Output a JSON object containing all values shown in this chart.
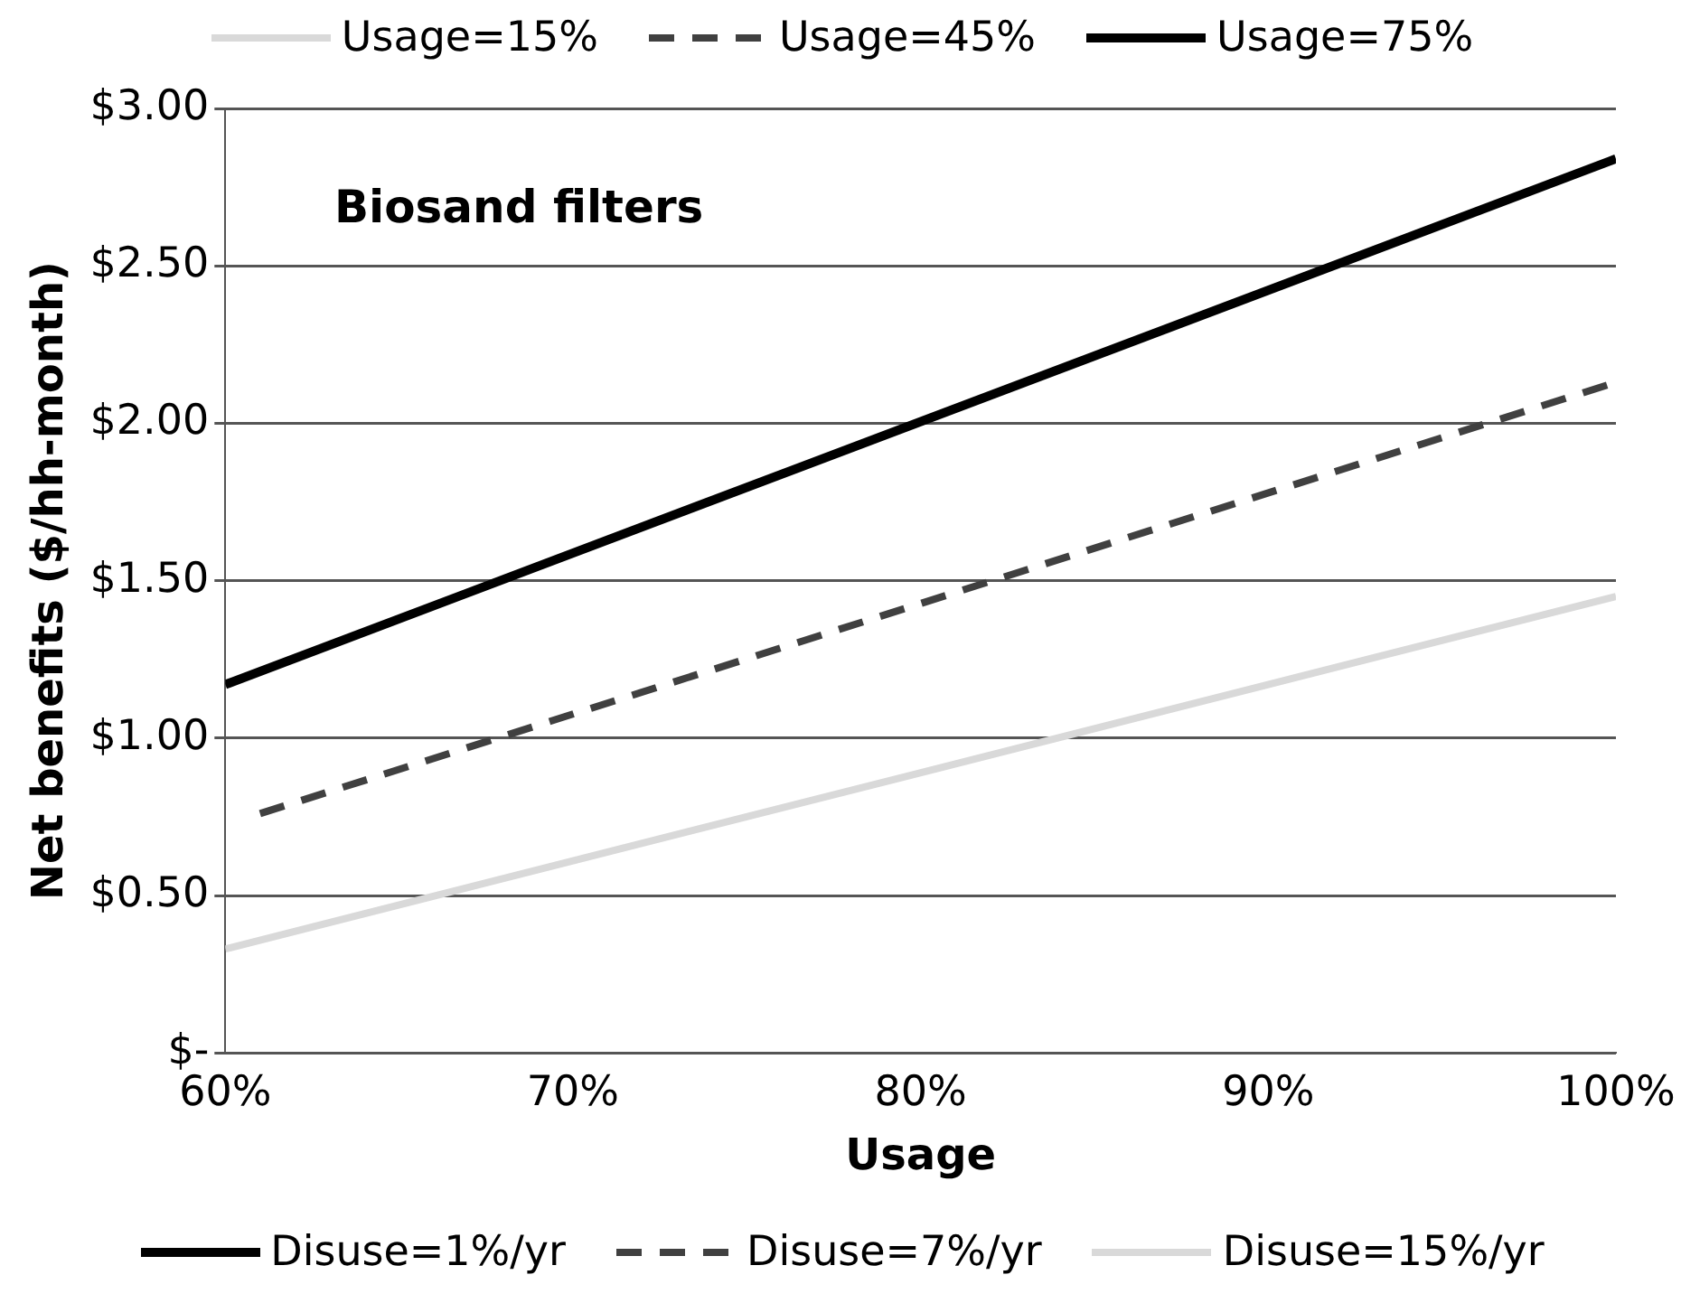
{
  "chart_data": {
    "type": "line",
    "xlabel": "Usage",
    "ylabel": "Net benefits ($/hh-month)",
    "annotations": [
      "Biosand filters",
      "Disuse=1%/yr",
      "Disuse=7%/yr",
      "Disuse=15%/yr"
    ],
    "series": [
      {
        "name": "Usage=15%",
        "color": "#d9d9d9",
        "line_style": "solid",
        "x": [
          60,
          100
        ],
        "values": [
          0.33,
          1.45
        ]
      },
      {
        "name": "Usage=45%",
        "color": "#404040",
        "line_style": "dashed",
        "x": [
          61,
          100
        ],
        "values": [
          0.76,
          2.13
        ]
      },
      {
        "name": "Usage=75%",
        "color": "#000000",
        "line_style": "solid",
        "x": [
          60,
          100
        ],
        "values": [
          1.17,
          2.84
        ]
      }
    ],
    "xlim": [
      60,
      100
    ],
    "xticks": [
      {
        "value": 60,
        "label": "60%"
      },
      {
        "value": 70,
        "label": "70%"
      },
      {
        "value": 80,
        "label": "80%"
      },
      {
        "value": 90,
        "label": "90%"
      },
      {
        "value": 100,
        "label": "100%"
      }
    ],
    "ylim": [
      0,
      3
    ],
    "yticks": [
      {
        "value": 0,
        "label": "$-"
      },
      {
        "value": 0.5,
        "label": "$0.50"
      },
      {
        "value": 1,
        "label": "$1.00"
      },
      {
        "value": 1.5,
        "label": "$1.50"
      },
      {
        "value": 2,
        "label": "$2.00"
      },
      {
        "value": 2.5,
        "label": "$2.50"
      },
      {
        "value": 3,
        "label": "$3.00"
      }
    ],
    "grid": "y",
    "legend": "top",
    "marker": "none"
  }
}
